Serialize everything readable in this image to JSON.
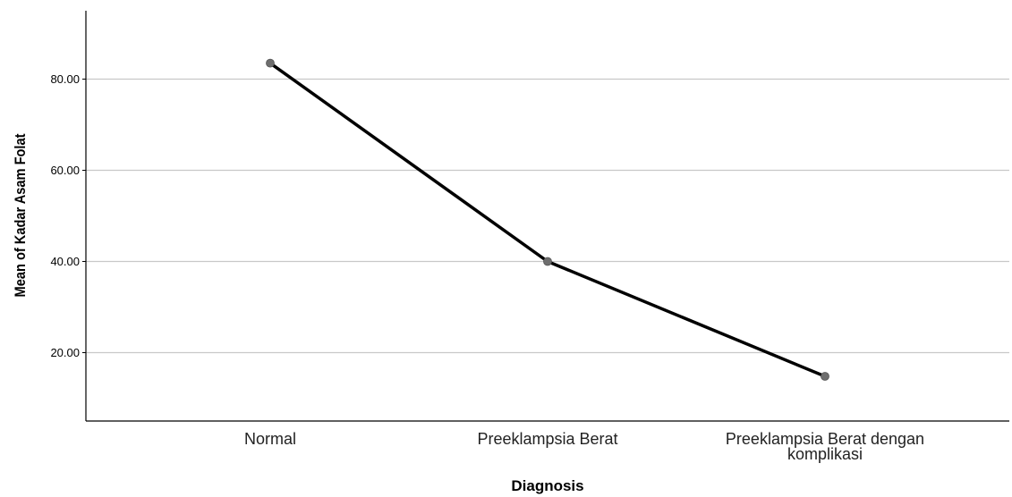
{
  "chart_data": {
    "type": "line",
    "title": "",
    "xlabel": "Diagnosis",
    "ylabel": "Mean of Kadar Asam Folat",
    "categories": [
      [
        "Normal"
      ],
      [
        "Preeklampsia Berat"
      ],
      [
        "Preeklampsia Berat dengan",
        "komplikasi"
      ]
    ],
    "values": [
      83.5,
      40.0,
      14.8
    ],
    "yticks": [
      20.0,
      40.0,
      60.0,
      80.0
    ],
    "ytick_labels": [
      "20.00",
      "40.00",
      "60.00",
      "80.00"
    ],
    "ylim": [
      5,
      95
    ],
    "grid": "horizontal",
    "line_color": "#000000",
    "marker_color": "#6e6e6e",
    "grid_color": "#c8c8c8"
  }
}
